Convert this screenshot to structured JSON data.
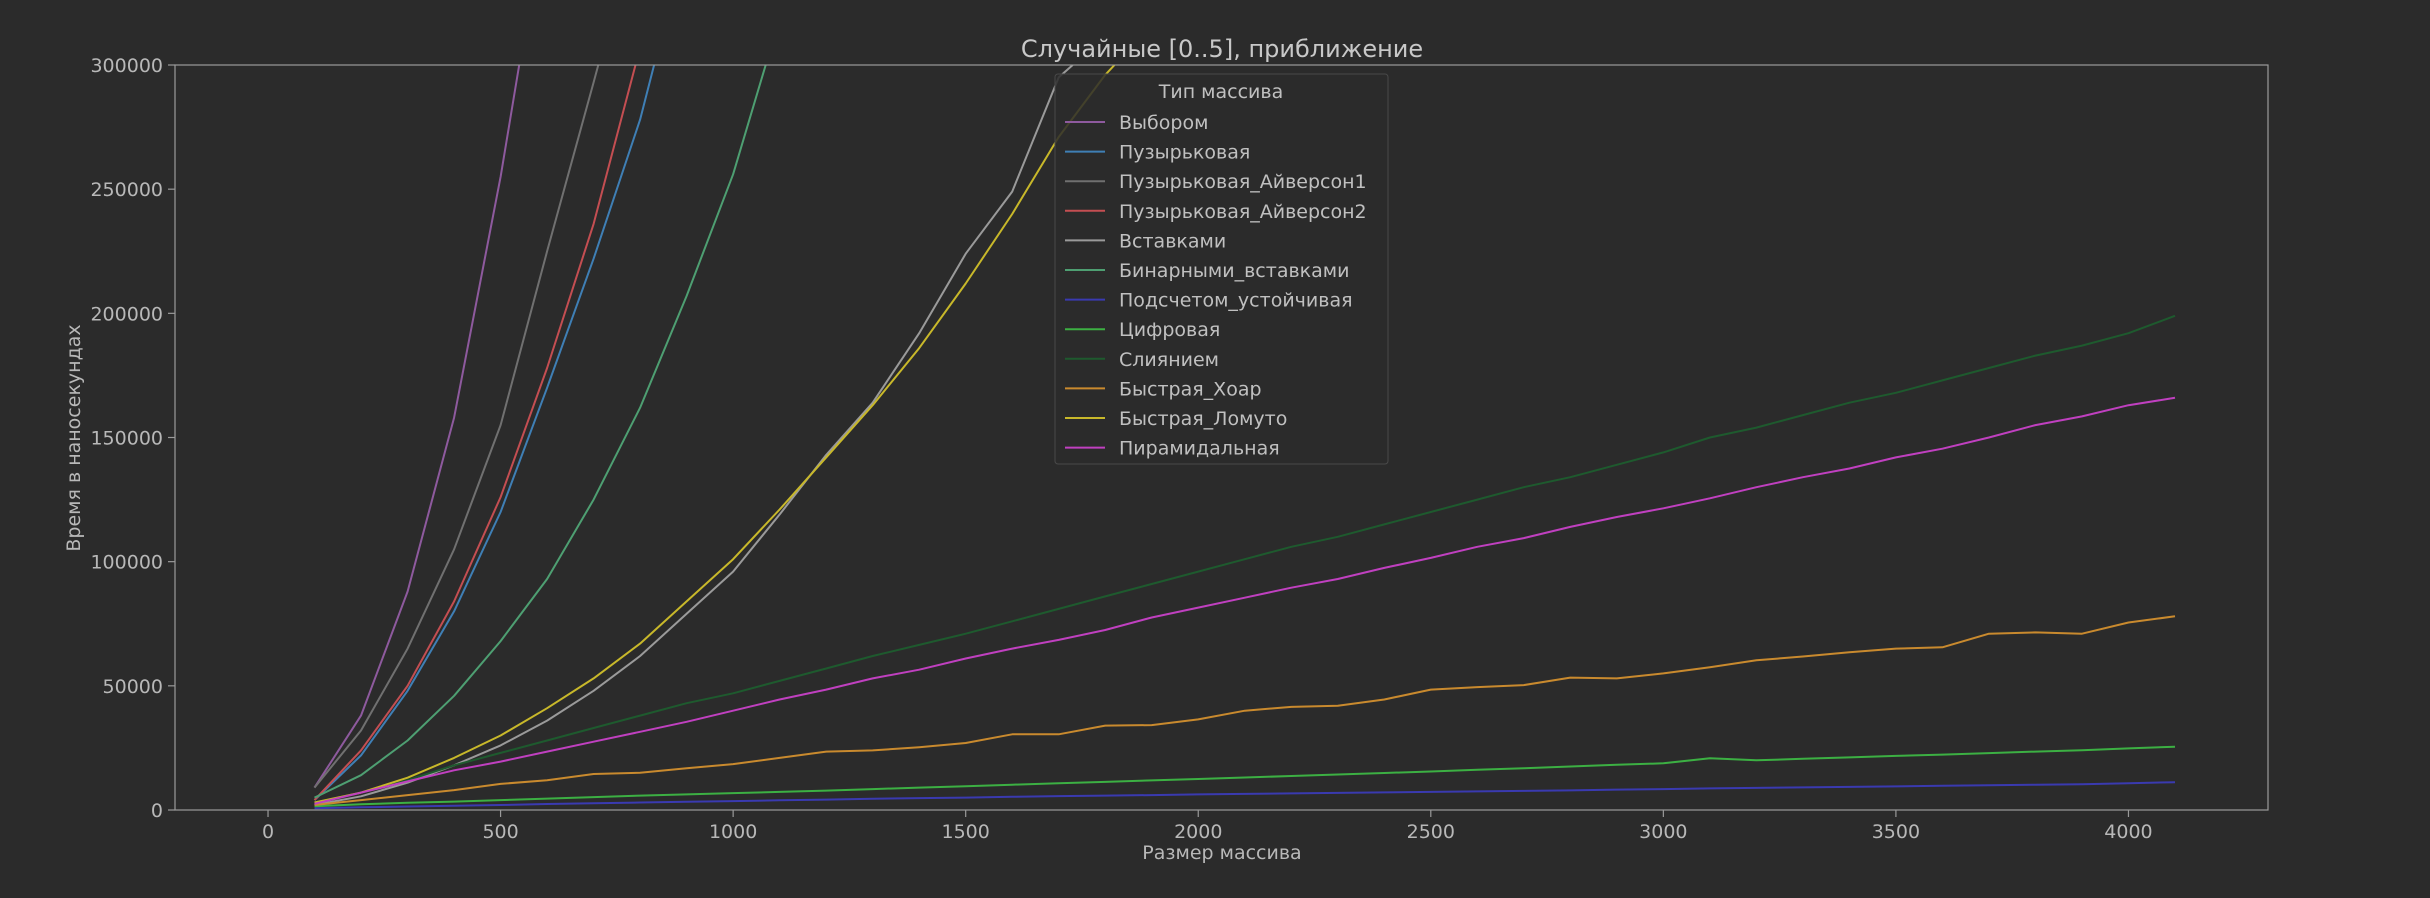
{
  "chart_data": {
    "type": "line",
    "title": "Случайные [0..5], приближение",
    "xlabel": "Размер массива",
    "ylabel": "Время в наносекундах",
    "xlim": [
      -200,
      4300
    ],
    "ylim": [
      0,
      300000
    ],
    "xticks": [
      0,
      500,
      1000,
      1500,
      2000,
      2500,
      3000,
      3500,
      4000
    ],
    "xtick_labels": [
      "0",
      "500",
      "1000",
      "1500",
      "2000",
      "2500",
      "3000",
      "3500",
      "4000"
    ],
    "yticks": [
      0,
      50000,
      100000,
      150000,
      200000,
      250000,
      300000
    ],
    "ytick_labels": [
      "0",
      "50000",
      "100000",
      "150000",
      "200000",
      "250000",
      "300000"
    ],
    "grid": false,
    "legend": {
      "title": "Тип массива",
      "placement": "top-center"
    },
    "series": [
      {
        "name": "Выбором",
        "color": "#8e5a9e",
        "x": [
          100,
          200,
          300,
          400,
          500,
          540
        ],
        "y": [
          9000,
          38000,
          88000,
          158000,
          255000,
          300000
        ]
      },
      {
        "name": "Пузырьковая",
        "color": "#3f7fb5",
        "x": [
          100,
          200,
          300,
          400,
          500,
          600,
          700,
          800,
          830
        ],
        "y": [
          4000,
          22000,
          48000,
          80000,
          120000,
          170000,
          222000,
          278000,
          300000
        ]
      },
      {
        "name": "Пузырьковая_Айверсон1",
        "color": "#707070",
        "x": [
          100,
          200,
          300,
          400,
          500,
          600,
          700,
          710
        ],
        "y": [
          9000,
          32000,
          65000,
          105000,
          155000,
          225000,
          293000,
          300000
        ]
      },
      {
        "name": "Пузырьковая_Айверсон2",
        "color": "#c44e52",
        "x": [
          100,
          200,
          300,
          400,
          500,
          600,
          700,
          790
        ],
        "y": [
          4000,
          24000,
          50000,
          84000,
          126000,
          178000,
          236000,
          300000
        ]
      },
      {
        "name": "Вставками",
        "color": "#9a9a9a",
        "x": [
          100,
          200,
          300,
          400,
          500,
          600,
          700,
          800,
          900,
          1000,
          1100,
          1200,
          1300,
          1400,
          1500,
          1600,
          1700,
          1730
        ],
        "y": [
          2000,
          5500,
          11000,
          18000,
          26000,
          36000,
          48000,
          62000,
          79000,
          96000,
          119000,
          143000,
          164000,
          192000,
          224000,
          249000,
          295000,
          300000
        ]
      },
      {
        "name": "Бинарными_вставками",
        "color": "#4e9f72",
        "x": [
          100,
          200,
          300,
          400,
          500,
          600,
          700,
          800,
          900,
          1000,
          1070
        ],
        "y": [
          5000,
          14000,
          28000,
          46000,
          68000,
          93000,
          125000,
          162000,
          207000,
          256000,
          300000
        ]
      },
      {
        "name": "Подсчетом_устойчивая",
        "color": "#3a3ab0",
        "x": [
          100,
          200,
          300,
          400,
          500,
          600,
          700,
          800,
          900,
          1000,
          1100,
          1200,
          1300,
          1400,
          1500,
          1600,
          1700,
          1800,
          1900,
          2000,
          2100,
          2200,
          2300,
          2400,
          2500,
          2600,
          2700,
          2800,
          2900,
          3000,
          3100,
          3200,
          3300,
          3400,
          3500,
          3600,
          3700,
          3800,
          3900,
          4000,
          4100
        ],
        "y": [
          700,
          1100,
          1400,
          1700,
          2000,
          2400,
          2700,
          3000,
          3300,
          3600,
          3900,
          4200,
          4500,
          4800,
          5000,
          5300,
          5600,
          5800,
          6000,
          6300,
          6500,
          6700,
          6900,
          7100,
          7300,
          7500,
          7700,
          7900,
          8200,
          8400,
          8700,
          8900,
          9100,
          9300,
          9500,
          9800,
          10000,
          10200,
          10400,
          10800,
          11200
        ]
      },
      {
        "name": "Цифровая",
        "color": "#3cb043",
        "x": [
          100,
          200,
          300,
          400,
          500,
          600,
          700,
          800,
          900,
          1000,
          1100,
          1200,
          1300,
          1400,
          1500,
          1600,
          1700,
          1800,
          1900,
          2000,
          2100,
          2200,
          2300,
          2400,
          2500,
          2600,
          2700,
          2800,
          2900,
          3000,
          3100,
          3200,
          3300,
          3400,
          3500,
          3600,
          3700,
          3800,
          3900,
          4000,
          4100
        ],
        "y": [
          1500,
          2300,
          2900,
          3400,
          4000,
          4600,
          5200,
          5800,
          6300,
          6800,
          7300,
          7800,
          8400,
          9000,
          9600,
          10200,
          10800,
          11300,
          11900,
          12500,
          13100,
          13700,
          14300,
          14900,
          15500,
          16200,
          16800,
          17500,
          18200,
          18800,
          20800,
          20000,
          20600,
          21200,
          21800,
          22300,
          22900,
          23500,
          24100,
          24800,
          25500
        ]
      },
      {
        "name": "Слиянием",
        "color": "#1e5a2e",
        "x": [
          100,
          200,
          300,
          400,
          500,
          600,
          700,
          800,
          900,
          1000,
          1100,
          1200,
          1300,
          1400,
          1500,
          1600,
          1700,
          1800,
          1900,
          2000,
          2100,
          2200,
          2300,
          2400,
          2500,
          2600,
          2700,
          2800,
          2900,
          3000,
          3100,
          3200,
          3300,
          3400,
          3500,
          3600,
          3700,
          3800,
          3900,
          4000,
          4100
        ],
        "y": [
          3000,
          7000,
          12000,
          18000,
          23000,
          28000,
          33000,
          38000,
          43000,
          47000,
          52000,
          57000,
          62000,
          66500,
          71000,
          76000,
          81000,
          86000,
          91000,
          96000,
          101000,
          106000,
          110000,
          115000,
          120000,
          125000,
          130000,
          134000,
          139000,
          144000,
          150000,
          154000,
          159000,
          164000,
          168000,
          173000,
          178000,
          183000,
          187000,
          192000,
          199000
        ]
      },
      {
        "name": "Быстрая_Хоар",
        "color": "#c98a2e",
        "x": [
          100,
          200,
          300,
          400,
          500,
          600,
          700,
          800,
          900,
          1000,
          1100,
          1200,
          1300,
          1400,
          1500,
          1600,
          1700,
          1800,
          1900,
          2000,
          2100,
          2200,
          2300,
          2400,
          2500,
          2600,
          2700,
          2800,
          2900,
          3000,
          3100,
          3200,
          3300,
          3400,
          3500,
          3600,
          3700,
          3800,
          3900,
          4000,
          4100
        ],
        "y": [
          2000,
          4000,
          6000,
          8000,
          10500,
          12000,
          14500,
          15000,
          16800,
          18500,
          21000,
          23500,
          24000,
          25300,
          27000,
          30500,
          30500,
          34000,
          34200,
          36500,
          40000,
          41500,
          42000,
          44500,
          48500,
          49500,
          50300,
          53300,
          53000,
          55000,
          57500,
          60300,
          61800,
          63500,
          65000,
          65500,
          71000,
          71500,
          71000,
          75500,
          78000
        ]
      },
      {
        "name": "Быстрая_Ломуто",
        "color": "#c8b82a",
        "x": [
          100,
          200,
          300,
          400,
          500,
          600,
          700,
          800,
          900,
          1000,
          1100,
          1200,
          1300,
          1400,
          1500,
          1600,
          1700,
          1800,
          1820
        ],
        "y": [
          3000,
          7000,
          13000,
          21000,
          30000,
          41000,
          53000,
          67000,
          84000,
          101000,
          121000,
          142000,
          163000,
          186000,
          212000,
          240000,
          271000,
          296000,
          300000
        ]
      },
      {
        "name": "Пирамидальная",
        "color": "#c040c0",
        "x": [
          100,
          200,
          300,
          400,
          500,
          600,
          700,
          800,
          900,
          1000,
          1100,
          1200,
          1300,
          1400,
          1500,
          1600,
          1700,
          1800,
          1900,
          2000,
          2100,
          2200,
          2300,
          2400,
          2500,
          2600,
          2700,
          2800,
          2900,
          3000,
          3100,
          3200,
          3300,
          3400,
          3500,
          3600,
          3700,
          3800,
          3900,
          4000,
          4100
        ],
        "y": [
          2500,
          7000,
          11500,
          16000,
          19500,
          23500,
          27500,
          31500,
          35500,
          40000,
          44500,
          48500,
          53000,
          56500,
          61000,
          65000,
          68500,
          72500,
          77500,
          81500,
          85500,
          89500,
          93000,
          97500,
          101500,
          106000,
          109500,
          114000,
          118000,
          121500,
          125500,
          130000,
          134000,
          137500,
          142000,
          145500,
          150000,
          155000,
          158500,
          163000,
          166000
        ]
      }
    ]
  }
}
